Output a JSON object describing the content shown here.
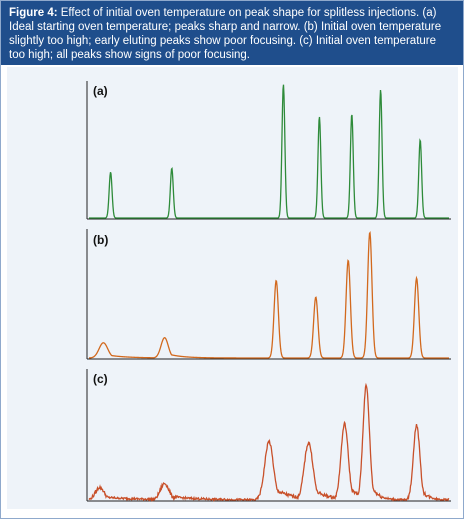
{
  "caption": {
    "label": "Figure 4:",
    "text": "Effect of initial oven temperature on peak shape for splitless injections. (a) Ideal starting oven temperature; peaks sharp and narrow. (b) Initial oven temperature slightly too high; early eluting peaks show poor focusing. (c) Initial oven temperature too high; all peaks show signs of poor focusing."
  },
  "chart_data": [
    {
      "type": "line",
      "panel_label": "(a)",
      "color": "#2e8b3a",
      "peaks": [
        {
          "center": 0.06,
          "height": 0.34,
          "width": 0.004
        },
        {
          "center": 0.23,
          "height": 0.37,
          "width": 0.004
        },
        {
          "center": 0.54,
          "height": 0.99,
          "width": 0.004
        },
        {
          "center": 0.64,
          "height": 0.75,
          "width": 0.004
        },
        {
          "center": 0.73,
          "height": 0.77,
          "width": 0.004
        },
        {
          "center": 0.81,
          "height": 0.95,
          "width": 0.004
        },
        {
          "center": 0.92,
          "height": 0.58,
          "width": 0.004
        }
      ]
    },
    {
      "type": "line",
      "panel_label": "(b)",
      "color": "#d2691e",
      "peaks": [
        {
          "center": 0.04,
          "height": 0.12,
          "width": 0.012,
          "tail": 0.05
        },
        {
          "center": 0.21,
          "height": 0.16,
          "width": 0.01,
          "tail": 0.04
        },
        {
          "center": 0.52,
          "height": 0.61,
          "width": 0.006
        },
        {
          "center": 0.63,
          "height": 0.48,
          "width": 0.006
        },
        {
          "center": 0.72,
          "height": 0.77,
          "width": 0.006
        },
        {
          "center": 0.78,
          "height": 0.99,
          "width": 0.006
        },
        {
          "center": 0.91,
          "height": 0.63,
          "width": 0.006
        }
      ]
    },
    {
      "type": "line",
      "panel_label": "(c)",
      "color": "#c8502a",
      "peaks": [
        {
          "center": 0.03,
          "height": 0.1,
          "width": 0.012,
          "tail": 0.1
        },
        {
          "center": 0.21,
          "height": 0.13,
          "width": 0.012,
          "tail": 0.08
        },
        {
          "center": 0.5,
          "height": 0.46,
          "width": 0.012,
          "tail": 0.05
        },
        {
          "center": 0.61,
          "height": 0.45,
          "width": 0.012,
          "tail": 0.04
        },
        {
          "center": 0.71,
          "height": 0.6,
          "width": 0.01,
          "tail": 0.03
        },
        {
          "center": 0.77,
          "height": 0.9,
          "width": 0.009,
          "tail": 0.02
        },
        {
          "center": 0.91,
          "height": 0.59,
          "width": 0.009,
          "tail": 0.02
        }
      ]
    }
  ]
}
